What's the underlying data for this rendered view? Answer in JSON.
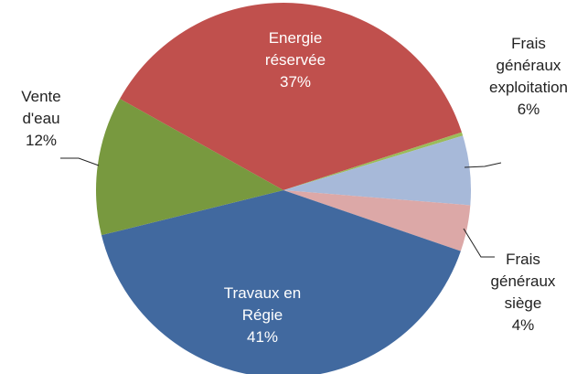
{
  "chart_data": {
    "type": "pie",
    "categories": [
      "Energie réservée",
      null,
      "Frais généraux exploitation",
      "Frais généraux siège",
      "Travaux en Régie",
      "Vente d'eau"
    ],
    "values": [
      37,
      0.3,
      6,
      4,
      41,
      12
    ],
    "value_labels": [
      "37%",
      null,
      "6%",
      "4%",
      "41%",
      "12%"
    ],
    "colors": [
      "#c0504d",
      "#9bbb59",
      "#a7b9d9",
      "#dca8a7",
      "#41699f",
      "#78993f"
    ]
  }
}
